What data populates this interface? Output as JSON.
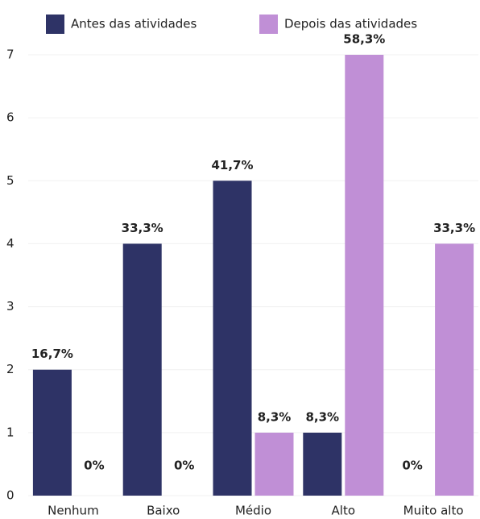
{
  "chart_data": {
    "type": "bar",
    "categories": [
      "Nenhum",
      "Baixo",
      "Médio",
      "Alto",
      "Muito alto"
    ],
    "series": [
      {
        "name": "Antes das atividades",
        "color": "#2e3366",
        "values": [
          2,
          4,
          5,
          1,
          0
        ],
        "value_labels": [
          "16,7%",
          "33,3%",
          "41,7%",
          "8,3%",
          "0%"
        ]
      },
      {
        "name": "Depois das atividades",
        "color": "#c08fd6",
        "values": [
          0,
          0,
          1,
          7,
          4
        ],
        "value_labels": [
          "0%",
          "0%",
          "8,3%",
          "58,3%",
          "33,3%"
        ]
      }
    ],
    "ylim": [
      0,
      7
    ],
    "yticks": [
      0,
      1,
      2,
      3,
      4,
      5,
      6,
      7
    ],
    "grid": true,
    "legend": "top"
  }
}
